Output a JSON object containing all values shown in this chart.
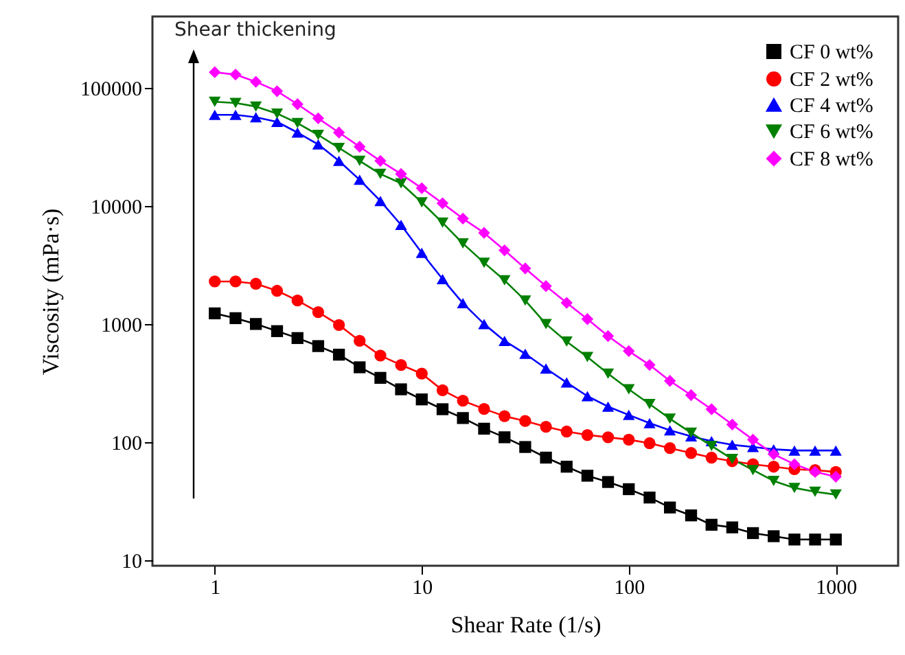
{
  "chart_data": {
    "type": "line",
    "xlabel": "Shear Rate (1/s)",
    "ylabel": "Viscosity (mPa·s)",
    "log": "xy",
    "grid": false,
    "legend": "top right",
    "annotations": [
      "Shear thickening"
    ],
    "x": [
      1,
      1.26,
      1.58,
      2,
      2.51,
      3.16,
      3.98,
      5.01,
      6.31,
      7.94,
      10,
      12.6,
      15.8,
      20,
      25.1,
      31.6,
      39.8,
      50.1,
      63.1,
      79.4,
      100,
      126,
      158,
      200,
      251,
      316,
      398,
      501,
      631,
      794,
      1000
    ],
    "xlim": [
      0.5,
      2000
    ],
    "xticks": [
      1,
      10,
      100,
      1000
    ],
    "ylim": [
      9,
      400000
    ],
    "yticks": [
      10,
      100,
      1000,
      10000,
      100000
    ],
    "series": [
      {
        "name": "CF 0 wt%",
        "color": "#000000",
        "marker": "square",
        "values": [
          1230,
          1120,
          1000,
          870,
          760,
          650,
          550,
          430,
          350,
          280,
          230,
          190,
          160,
          130,
          110,
          91,
          74,
          62,
          52,
          46,
          40,
          34,
          28,
          24,
          20,
          19,
          17,
          16,
          15,
          15,
          15
        ]
      },
      {
        "name": "CF 2 wt%",
        "color": "#ff0000",
        "marker": "circle",
        "values": [
          2290,
          2290,
          2190,
          1910,
          1580,
          1260,
          980,
          720,
          540,
          450,
          380,
          275,
          224,
          191,
          166,
          151,
          135,
          123,
          115,
          110,
          105,
          98,
          89,
          81,
          74,
          69,
          65,
          62,
          59,
          58,
          56
        ]
      },
      {
        "name": "CF 4 wt%",
        "color": "#0000ff",
        "marker": "triangle",
        "values": [
          58900,
          58900,
          56200,
          51300,
          41700,
          33100,
          24000,
          16600,
          11000,
          6900,
          4000,
          2400,
          1500,
          1000,
          720,
          560,
          420,
          320,
          245,
          200,
          170,
          145,
          126,
          112,
          102,
          95,
          91,
          87,
          85,
          85,
          85
        ]
      },
      {
        "name": "CF 6 wt%",
        "color": "#008000",
        "marker": "triangle-down",
        "values": [
          75900,
          74100,
          69200,
          60300,
          50100,
          39800,
          30900,
          24000,
          18600,
          15500,
          10700,
          7200,
          4800,
          3300,
          2340,
          1580,
          1000,
          710,
          525,
          380,
          280,
          210,
          158,
          120,
          93,
          72,
          58,
          47,
          41,
          38,
          36
        ]
      },
      {
        "name": "CF 8 wt%",
        "color": "#ff00ff",
        "marker": "diamond",
        "values": [
          135000,
          129000,
          112000,
          93300,
          72400,
          55000,
          41700,
          31600,
          24000,
          18600,
          14100,
          10500,
          7800,
          5900,
          4200,
          2950,
          2090,
          1510,
          1100,
          790,
          590,
          450,
          330,
          250,
          190,
          141,
          105,
          79,
          65,
          56,
          51
        ]
      }
    ]
  }
}
